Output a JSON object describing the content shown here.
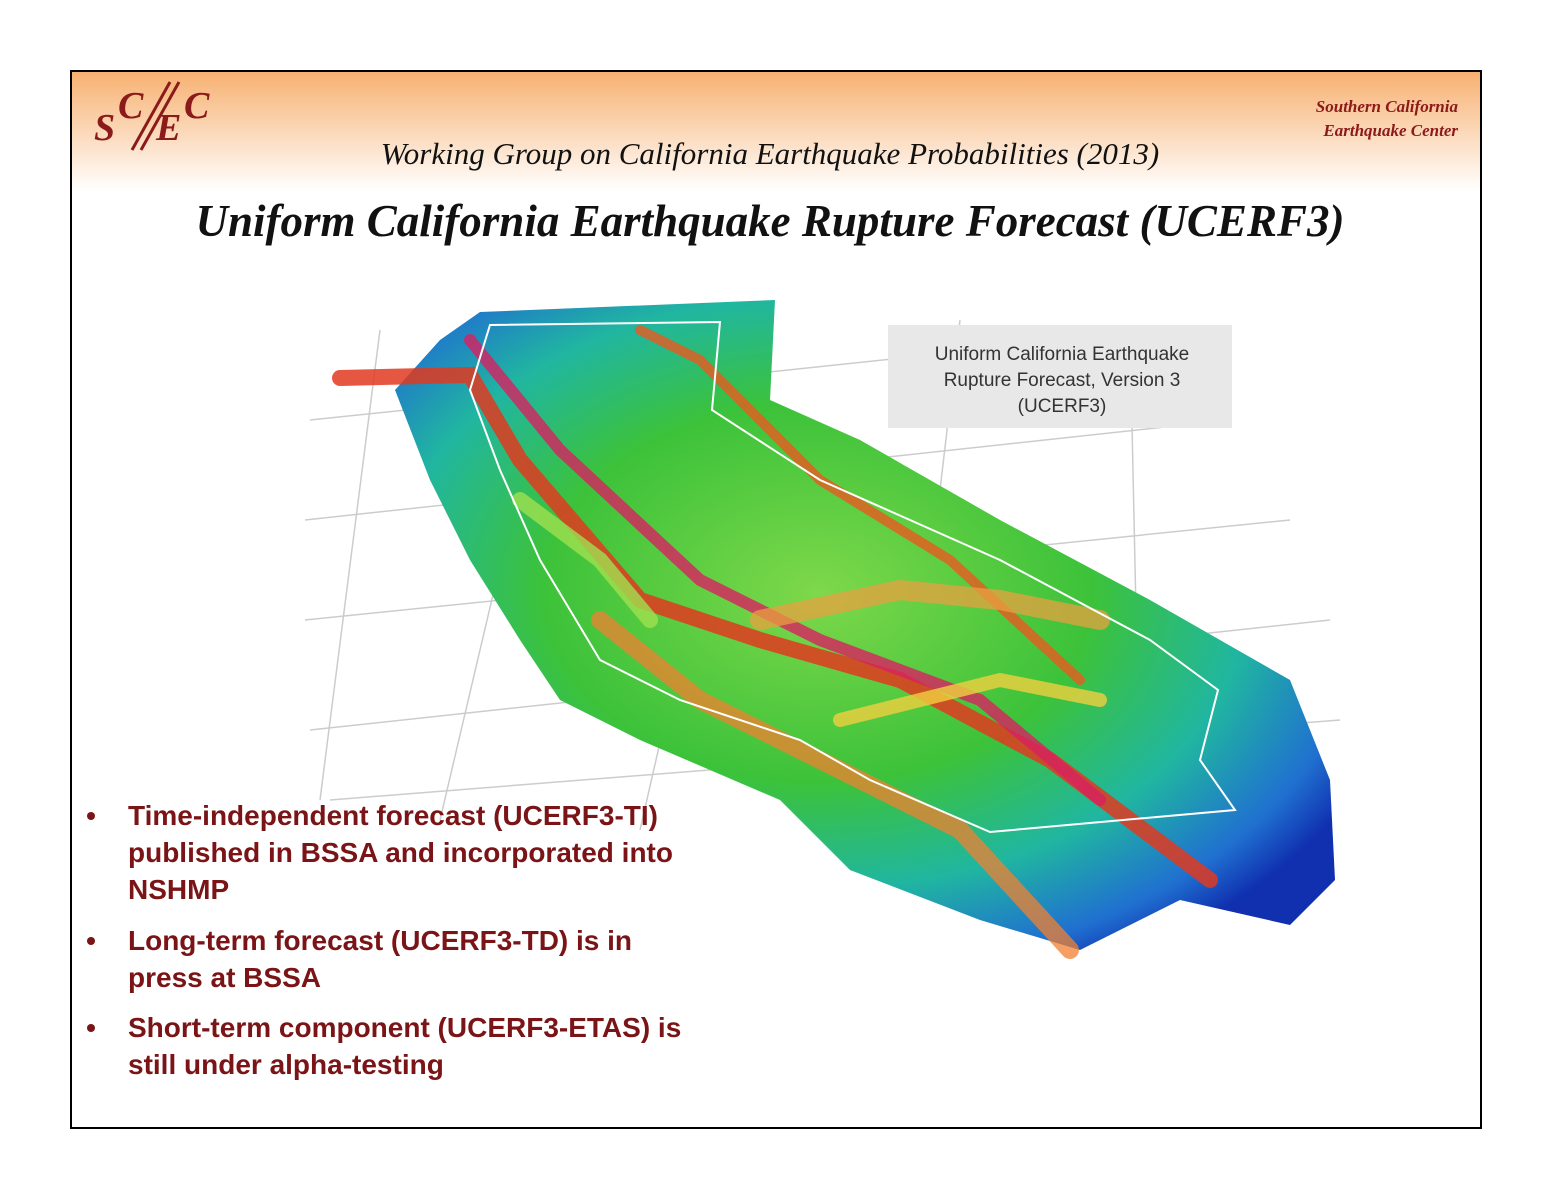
{
  "logo": {
    "letters": [
      "S",
      "C",
      "E",
      "C"
    ]
  },
  "header": {
    "org_lines": [
      "Southern California",
      "Earthquake Center"
    ],
    "subtitle": "Working Group on California Earthquake Probabilities (2013)",
    "title": "Uniform California Earthquake Rupture Forecast (UCERF3)"
  },
  "map": {
    "label_lines": [
      "Uniform California Earthquake",
      "Rupture Forecast, Version 3",
      "(UCERF3)"
    ]
  },
  "bullets": [
    {
      "lines": [
        "Time-independent forecast (UCERF3-TI)",
        "published in BSSA and incorporated into",
        "NSHMP"
      ]
    },
    {
      "lines": [
        "Long-term forecast (UCERF3-TD) is in",
        "press at BSSA"
      ]
    },
    {
      "lines": [
        "Short-term component (UCERF3-ETAS) is",
        "still under alpha-testing"
      ]
    }
  ]
}
